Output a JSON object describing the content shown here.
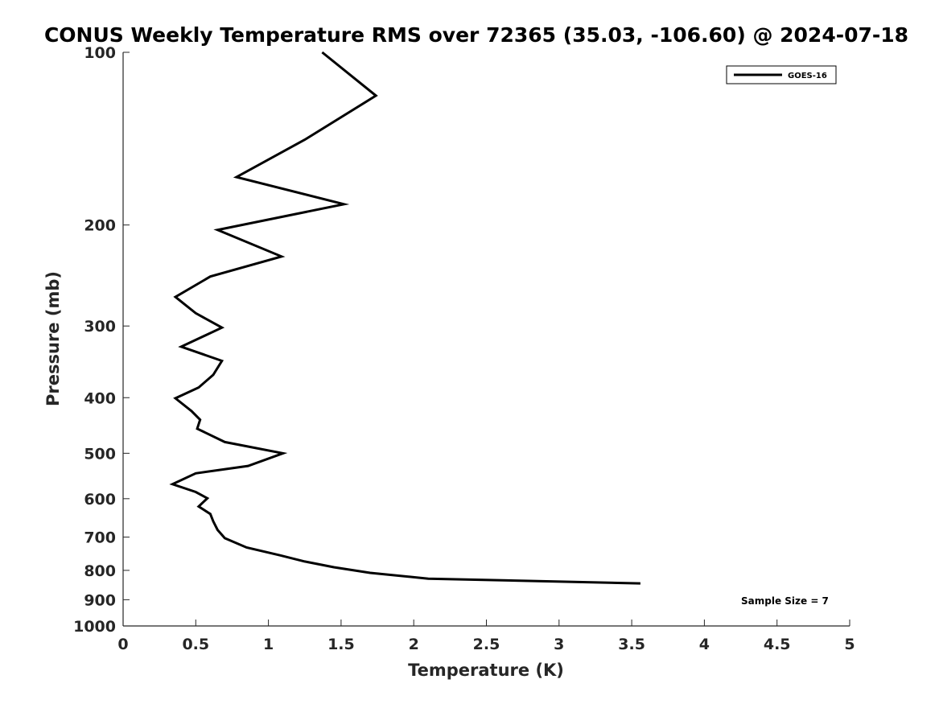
{
  "chart_data": {
    "type": "line",
    "title": "CONUS Weekly Temperature RMS over 72365 (35.03, -106.60) @ 2024-07-18",
    "xlabel": "Temperature (K)",
    "ylabel": "Pressure (mb)",
    "xlim": [
      0,
      5
    ],
    "ylim": [
      100,
      1000
    ],
    "y_scale": "log",
    "y_reversed": true,
    "grid": false,
    "legend_position": "top-right",
    "x_ticks": [
      "0",
      "0.5",
      "1",
      "1.5",
      "2",
      "2.5",
      "3",
      "3.5",
      "4",
      "4.5",
      "5"
    ],
    "y_ticks": [
      "100",
      "200",
      "300",
      "400",
      "500",
      "600",
      "700",
      "800",
      "900",
      "1000"
    ],
    "series": [
      {
        "name": "GOES-16",
        "color": "#000000",
        "x": [
          1.37,
          1.74,
          1.25,
          0.78,
          1.52,
          0.65,
          1.09,
          0.6,
          0.36,
          0.5,
          0.68,
          0.4,
          0.68,
          0.62,
          0.52,
          0.36,
          0.47,
          0.53,
          0.51,
          0.7,
          1.1,
          0.86,
          0.5,
          0.34,
          0.5,
          0.58,
          0.52,
          0.6,
          0.62,
          0.65,
          0.7,
          0.85,
          1.08,
          1.25,
          1.45,
          1.7,
          2.1,
          3.56
        ],
        "y": [
          100,
          119,
          142,
          165,
          184,
          204,
          227,
          246,
          267,
          285,
          302,
          326,
          345,
          365,
          384,
          401,
          422,
          437,
          453,
          478,
          500,
          526,
          542,
          566,
          584,
          599,
          619,
          638,
          657,
          680,
          703,
          730,
          753,
          772,
          790,
          808,
          827,
          843
        ]
      }
    ],
    "annotations": [
      "Sample Size = 7"
    ]
  }
}
